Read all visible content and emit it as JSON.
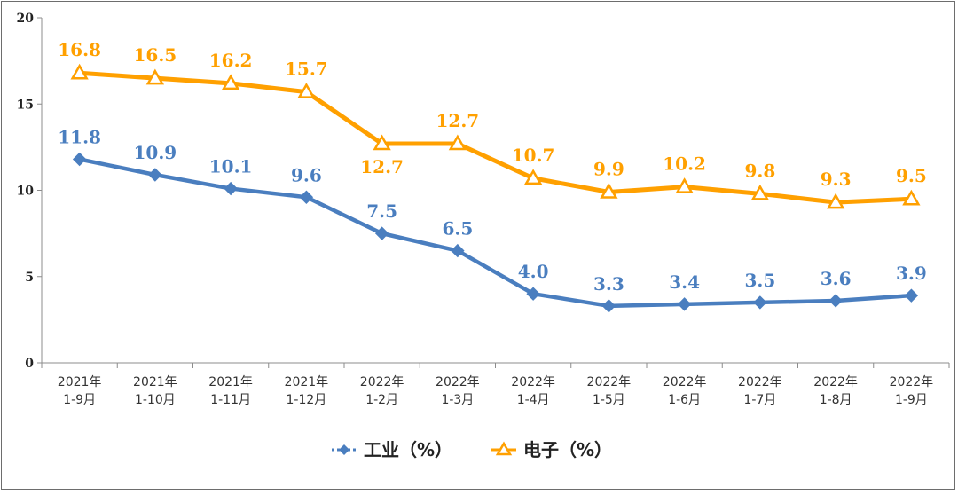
{
  "chart_data": {
    "type": "line",
    "title": "",
    "xlabel": "",
    "ylabel": "",
    "ylim": [
      0,
      20
    ],
    "yticks": [
      0,
      5,
      10,
      15,
      20
    ],
    "grid": false,
    "legend_position": "bottom-center",
    "categories": [
      [
        "2021年",
        "1-9月"
      ],
      [
        "2021年",
        "1-10月"
      ],
      [
        "2021年",
        "1-11月"
      ],
      [
        "2021年",
        "1-12月"
      ],
      [
        "2022年",
        "1-2月"
      ],
      [
        "2022年",
        "1-3月"
      ],
      [
        "2022年",
        "1-4月"
      ],
      [
        "2022年",
        "1-5月"
      ],
      [
        "2022年",
        "1-6月"
      ],
      [
        "2022年",
        "1-7月"
      ],
      [
        "2022年",
        "1-8月"
      ],
      [
        "2022年",
        "1-9月"
      ]
    ],
    "series": [
      {
        "name": "工业（%）",
        "color": "#4a7ebf",
        "marker": "diamond",
        "values": [
          11.8,
          10.9,
          10.1,
          9.6,
          7.5,
          6.5,
          4.0,
          3.3,
          3.4,
          3.5,
          3.6,
          3.9
        ],
        "labels": [
          "11.8",
          "10.9",
          "10.1",
          "9.6",
          "7.5",
          "6.5",
          "4.0",
          "3.3",
          "3.4",
          "3.5",
          "3.6",
          "3.9"
        ]
      },
      {
        "name": "电子（%）",
        "color": "#ffa000",
        "marker": "triangle",
        "values": [
          16.8,
          16.5,
          16.2,
          15.7,
          12.7,
          12.7,
          10.7,
          9.9,
          10.2,
          9.8,
          9.3,
          9.5
        ],
        "labels": [
          "16.8",
          "16.5",
          "16.2",
          "15.7",
          "12.7",
          "12.7",
          "10.7",
          "9.9",
          "10.2",
          "9.8",
          "9.3",
          "9.5"
        ]
      }
    ]
  }
}
